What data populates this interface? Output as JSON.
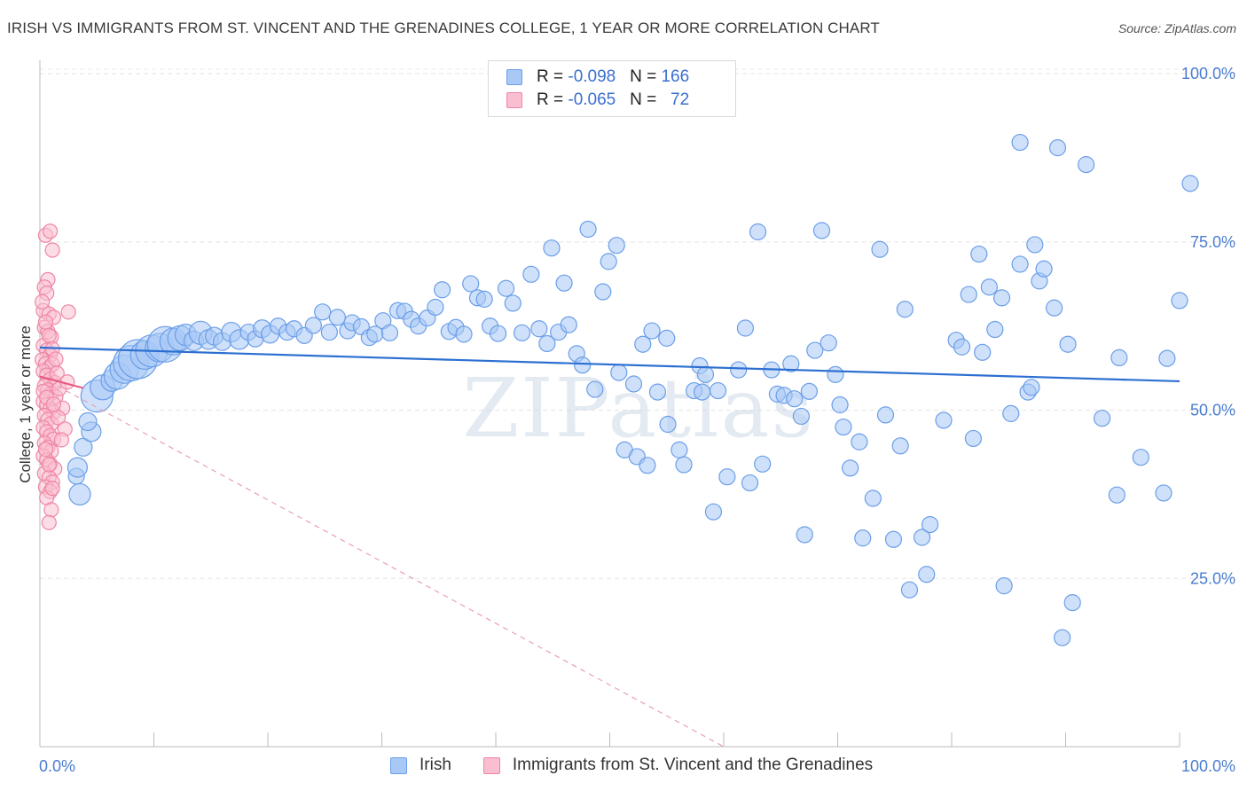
{
  "title": "IRISH VS IMMIGRANTS FROM ST. VINCENT AND THE GRENADINES COLLEGE, 1 YEAR OR MORE CORRELATION CHART",
  "source": "Source: ZipAtlas.com",
  "watermark": "ZIPatlas",
  "legend_top": [
    {
      "prefix": "R = ",
      "r": "-0.098",
      "nlabel": "   N = ",
      "n": "166",
      "color": "#a8c8f5",
      "stroke": "#6b9ee8"
    },
    {
      "prefix": "R = ",
      "r": "-0.065",
      "nlabel": "   N =   ",
      "n": "72",
      "color": "#f9bfd0",
      "stroke": "#ef86a6"
    }
  ],
  "legend_bottom": [
    {
      "label": "Irish",
      "color": "#a8c8f5",
      "stroke": "#6b9ee8"
    },
    {
      "label": "Immigrants from St. Vincent and the Grenadines",
      "color": "#f9bfd0",
      "stroke": "#ef86a6"
    }
  ],
  "chart_data": {
    "type": "scatter",
    "title": "IRISH VS IMMIGRANTS FROM ST. VINCENT AND THE GRENADINES COLLEGE, 1 YEAR OR MORE CORRELATION CHART",
    "xlabel": "",
    "ylabel": "College, 1 year or more",
    "xlim": [
      0,
      100
    ],
    "ylim": [
      0,
      102
    ],
    "x_tick_labels": [
      "0.0%",
      "100.0%"
    ],
    "y_tick_labels": [
      "25.0%",
      "50.0%",
      "75.0%",
      "100.0%"
    ],
    "y_ticks": [
      25,
      50,
      75,
      100
    ],
    "grid": true,
    "legend": "top-center",
    "series": [
      {
        "name": "Irish",
        "color": "#6b9ee8",
        "fill": "#a8c8f5",
        "trend": {
          "x": [
            0,
            100
          ],
          "y": [
            59.3,
            54.3
          ],
          "color": "#2c6fd1"
        },
        "points": [
          [
            3.5,
            37.5,
            12
          ],
          [
            3.2,
            40.2,
            9
          ],
          [
            3.3,
            41.5,
            11
          ],
          [
            3.8,
            44.5,
            10
          ],
          [
            4.5,
            46.8,
            11
          ],
          [
            4.2,
            48.3,
            10
          ],
          [
            5.0,
            52.1,
            18
          ],
          [
            5.5,
            53.4,
            14
          ],
          [
            6.3,
            54.4,
            12
          ],
          [
            6.8,
            55.1,
            15
          ],
          [
            7.4,
            56.1,
            16
          ],
          [
            8.0,
            57.0,
            20
          ],
          [
            8.6,
            57.6,
            22
          ],
          [
            9.2,
            58.2,
            16
          ],
          [
            9.8,
            58.8,
            18
          ],
          [
            10.5,
            59.3,
            16
          ],
          [
            11.0,
            59.8,
            20
          ],
          [
            11.7,
            60.2,
            15
          ],
          [
            12.3,
            60.7,
            14
          ],
          [
            12.8,
            61.2,
            12
          ],
          [
            13.5,
            60.3,
            11
          ],
          [
            14.1,
            61.5,
            13
          ],
          [
            14.8,
            60.5,
            11
          ],
          [
            15.3,
            61.0,
            10
          ],
          [
            16.0,
            60.2,
            10
          ],
          [
            16.8,
            61.6,
            11
          ],
          [
            17.5,
            60.5,
            11
          ],
          [
            18.3,
            61.6,
            9
          ],
          [
            18.9,
            60.6,
            9
          ],
          [
            19.5,
            62.1,
            10
          ],
          [
            20.2,
            61.3,
            10
          ],
          [
            20.9,
            62.5,
            9
          ],
          [
            21.7,
            61.6,
            9
          ],
          [
            22.3,
            62.1,
            9
          ],
          [
            23.2,
            61.1,
            9
          ],
          [
            24.0,
            62.6,
            9
          ],
          [
            24.8,
            64.6,
            9
          ],
          [
            25.4,
            61.6,
            9
          ],
          [
            26.1,
            63.8,
            9
          ],
          [
            27.0,
            61.8,
            9
          ],
          [
            27.4,
            63.0,
            9
          ],
          [
            28.2,
            62.4,
            9
          ],
          [
            28.9,
            60.8,
            9
          ],
          [
            29.4,
            61.3,
            9
          ],
          [
            30.1,
            63.3,
            9
          ],
          [
            30.7,
            61.5,
            9
          ],
          [
            31.4,
            64.8,
            9
          ],
          [
            32.0,
            64.7,
            9
          ],
          [
            32.6,
            63.5,
            9
          ],
          [
            33.2,
            62.5,
            9
          ],
          [
            34.0,
            63.7,
            9
          ],
          [
            34.7,
            65.3,
            9
          ],
          [
            35.3,
            67.9,
            9
          ],
          [
            35.9,
            61.7,
            9
          ],
          [
            36.5,
            62.3,
            9
          ],
          [
            37.2,
            61.3,
            9
          ],
          [
            37.8,
            68.8,
            9
          ],
          [
            38.4,
            66.7,
            9
          ],
          [
            39.0,
            66.5,
            9
          ],
          [
            39.5,
            62.5,
            9
          ],
          [
            40.2,
            61.4,
            9
          ],
          [
            40.9,
            68.1,
            9
          ],
          [
            41.5,
            65.9,
            9
          ],
          [
            42.3,
            61.5,
            9
          ],
          [
            43.1,
            70.2,
            9
          ],
          [
            43.8,
            62.1,
            9
          ],
          [
            44.5,
            59.9,
            9
          ],
          [
            44.9,
            74.1,
            9
          ],
          [
            45.5,
            61.6,
            9
          ],
          [
            46.0,
            68.9,
            9
          ],
          [
            46.4,
            62.7,
            9
          ],
          [
            47.1,
            58.4,
            9
          ],
          [
            47.6,
            56.7,
            9
          ],
          [
            48.1,
            76.9,
            9
          ],
          [
            48.7,
            53.1,
            9
          ],
          [
            49.4,
            67.6,
            9
          ],
          [
            49.9,
            72.1,
            9
          ],
          [
            50.6,
            74.5,
            9
          ],
          [
            50.8,
            55.6,
            9
          ],
          [
            51.3,
            44.1,
            9
          ],
          [
            52.1,
            53.9,
            9
          ],
          [
            52.4,
            43.1,
            9
          ],
          [
            52.9,
            59.8,
            9
          ],
          [
            53.3,
            41.8,
            9
          ],
          [
            53.7,
            61.8,
            9
          ],
          [
            54.2,
            52.7,
            9
          ],
          [
            55.0,
            60.7,
            9
          ],
          [
            55.1,
            47.9,
            9
          ],
          [
            56.1,
            44.1,
            9
          ],
          [
            56.5,
            41.9,
            9
          ],
          [
            57.4,
            52.9,
            9
          ],
          [
            58.1,
            52.7,
            9
          ],
          [
            57.9,
            56.6,
            9
          ],
          [
            58.4,
            55.3,
            9
          ],
          [
            59.1,
            34.9,
            9
          ],
          [
            59.5,
            52.9,
            9
          ],
          [
            60.3,
            40.1,
            9
          ],
          [
            61.3,
            56.0,
            9
          ],
          [
            61.9,
            62.2,
            9
          ],
          [
            62.3,
            39.2,
            9
          ],
          [
            63.0,
            76.5,
            9
          ],
          [
            63.4,
            42.0,
            9
          ],
          [
            64.2,
            56.0,
            9
          ],
          [
            64.7,
            52.4,
            9
          ],
          [
            65.3,
            52.2,
            9
          ],
          [
            65.9,
            56.9,
            9
          ],
          [
            66.2,
            51.7,
            9
          ],
          [
            66.8,
            49.1,
            9
          ],
          [
            67.1,
            31.5,
            9
          ],
          [
            67.5,
            52.8,
            9
          ],
          [
            68.0,
            58.9,
            9
          ],
          [
            68.6,
            76.7,
            9
          ],
          [
            69.2,
            60.0,
            9
          ],
          [
            69.8,
            55.3,
            9
          ],
          [
            70.2,
            50.8,
            9
          ],
          [
            70.5,
            47.5,
            9
          ],
          [
            71.1,
            41.4,
            9
          ],
          [
            71.9,
            45.3,
            9
          ],
          [
            72.2,
            31.0,
            9
          ],
          [
            73.1,
            36.9,
            9
          ],
          [
            73.7,
            73.9,
            9
          ],
          [
            74.2,
            49.3,
            9
          ],
          [
            74.9,
            30.8,
            9
          ],
          [
            75.5,
            44.7,
            9
          ],
          [
            75.9,
            65.0,
            9
          ],
          [
            76.3,
            23.3,
            9
          ],
          [
            77.4,
            31.1,
            9
          ],
          [
            77.8,
            25.6,
            9
          ],
          [
            78.1,
            33.0,
            9
          ],
          [
            79.3,
            48.5,
            9
          ],
          [
            80.4,
            60.4,
            9
          ],
          [
            80.9,
            59.4,
            9
          ],
          [
            81.5,
            67.2,
            9
          ],
          [
            81.9,
            45.8,
            9
          ],
          [
            82.4,
            73.2,
            9
          ],
          [
            82.7,
            58.6,
            9
          ],
          [
            83.3,
            68.3,
            9
          ],
          [
            83.8,
            62.0,
            9
          ],
          [
            84.4,
            66.7,
            9
          ],
          [
            84.6,
            23.9,
            9
          ],
          [
            85.2,
            49.5,
            9
          ],
          [
            86.0,
            71.7,
            9
          ],
          [
            86.7,
            52.7,
            9
          ],
          [
            87.0,
            53.4,
            9
          ],
          [
            87.3,
            74.6,
            9
          ],
          [
            87.7,
            69.2,
            9
          ],
          [
            88.1,
            71.0,
            9
          ],
          [
            89.0,
            65.2,
            9
          ],
          [
            89.3,
            89.0,
            9
          ],
          [
            90.2,
            59.8,
            9
          ],
          [
            90.6,
            21.4,
            9
          ],
          [
            89.7,
            16.2,
            9
          ],
          [
            91.8,
            86.5,
            9
          ],
          [
            93.2,
            48.8,
            9
          ],
          [
            94.5,
            37.4,
            9
          ],
          [
            94.7,
            57.8,
            9
          ],
          [
            96.6,
            43.0,
            9
          ],
          [
            98.6,
            37.7,
            9
          ],
          [
            98.9,
            57.7,
            9
          ],
          [
            100.0,
            66.3,
            9
          ],
          [
            102.0,
            83.7,
            9
          ],
          [
            86.0,
            89.8,
            9
          ]
        ]
      },
      {
        "name": "Immigrants from St. Vincent and the Grenadines",
        "color": "#ef86a6",
        "fill": "#f9bfd0",
        "trend": {
          "x": [
            0,
            3.8
          ],
          "y": [
            55.0,
            53.3
          ],
          "color": "#e8567e"
        },
        "trend_extended": {
          "x": [
            0,
            60
          ],
          "y": [
            55.0,
            0
          ],
          "color": "#e8a0b4",
          "dashed": true
        },
        "points": [
          [
            0.5,
            76.0,
            8
          ],
          [
            0.9,
            76.6,
            8
          ],
          [
            1.1,
            73.8,
            8
          ],
          [
            0.7,
            69.4,
            8
          ],
          [
            0.4,
            68.3,
            8
          ],
          [
            0.6,
            67.4,
            8
          ],
          [
            0.3,
            64.8,
            8
          ],
          [
            0.8,
            64.3,
            8
          ],
          [
            1.2,
            63.8,
            8
          ],
          [
            0.4,
            62.3,
            8
          ],
          [
            0.7,
            61.7,
            8
          ],
          [
            1.0,
            60.9,
            8
          ],
          [
            0.3,
            59.6,
            8
          ],
          [
            0.6,
            58.9,
            8
          ],
          [
            0.9,
            58.2,
            8
          ],
          [
            0.2,
            57.5,
            8
          ],
          [
            0.5,
            56.9,
            8
          ],
          [
            0.8,
            56.3,
            8
          ],
          [
            1.1,
            56.8,
            8
          ],
          [
            0.3,
            55.8,
            8
          ],
          [
            0.6,
            55.2,
            8
          ],
          [
            0.9,
            54.6,
            8
          ],
          [
            1.3,
            54.1,
            8
          ],
          [
            0.4,
            53.6,
            8
          ],
          [
            0.7,
            53.0,
            8
          ],
          [
            1.0,
            52.5,
            8
          ],
          [
            1.4,
            52.0,
            8
          ],
          [
            0.3,
            51.3,
            8
          ],
          [
            0.6,
            50.8,
            8
          ],
          [
            0.9,
            50.2,
            8
          ],
          [
            1.2,
            49.7,
            8
          ],
          [
            0.4,
            49.2,
            8
          ],
          [
            0.7,
            48.6,
            8
          ],
          [
            1.0,
            48.0,
            8
          ],
          [
            0.3,
            47.4,
            8
          ],
          [
            0.6,
            46.8,
            8
          ],
          [
            0.9,
            46.2,
            8
          ],
          [
            1.2,
            45.7,
            8
          ],
          [
            0.4,
            45.1,
            8
          ],
          [
            0.7,
            44.5,
            8
          ],
          [
            1.0,
            43.9,
            8
          ],
          [
            0.3,
            43.2,
            8
          ],
          [
            0.6,
            42.6,
            8
          ],
          [
            0.9,
            42.0,
            8
          ],
          [
            1.3,
            41.3,
            8
          ],
          [
            0.4,
            40.6,
            8
          ],
          [
            0.8,
            40.0,
            8
          ],
          [
            1.1,
            39.3,
            8
          ],
          [
            0.5,
            38.6,
            8
          ],
          [
            0.9,
            37.9,
            8
          ],
          [
            0.6,
            37.0,
            8
          ],
          [
            1.0,
            35.2,
            8
          ],
          [
            0.8,
            33.3,
            8
          ],
          [
            1.5,
            55.5,
            8
          ],
          [
            1.7,
            53.2,
            8
          ],
          [
            2.0,
            50.3,
            8
          ],
          [
            1.6,
            48.9,
            8
          ],
          [
            2.2,
            47.2,
            8
          ],
          [
            1.9,
            45.6,
            8
          ],
          [
            0.2,
            66.1,
            8
          ],
          [
            0.5,
            63.1,
            8
          ],
          [
            0.8,
            61.1,
            8
          ],
          [
            1.1,
            59.1,
            8
          ],
          [
            1.4,
            57.6,
            8
          ],
          [
            0.3,
            52.8,
            8
          ],
          [
            0.6,
            51.9,
            8
          ],
          [
            1.2,
            50.9,
            8
          ],
          [
            0.5,
            44.2,
            8
          ],
          [
            0.8,
            41.9,
            8
          ],
          [
            1.1,
            38.4,
            8
          ],
          [
            2.5,
            64.6,
            8
          ],
          [
            2.4,
            54.2,
            8
          ]
        ]
      }
    ]
  }
}
